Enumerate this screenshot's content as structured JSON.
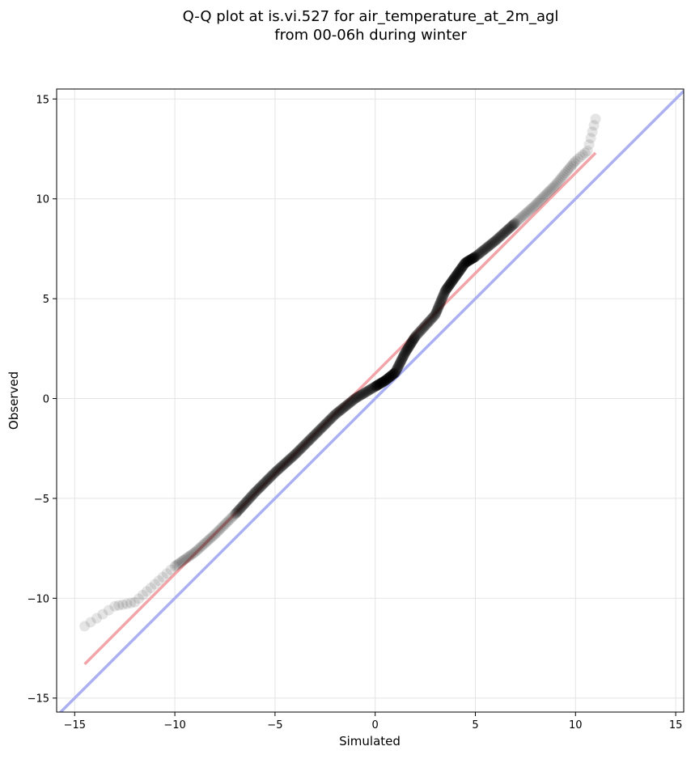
{
  "chart_data": {
    "type": "scatter",
    "title_line1": "Q-Q plot at is.vi.527 for air_temperature_at_2m_agl",
    "title_line2": "from 00-06h during winter",
    "xlabel": "Simulated",
    "ylabel": "Observed",
    "xlim": [
      -15.9,
      15.4
    ],
    "ylim": [
      -15.7,
      15.5
    ],
    "xticks": [
      -15,
      -10,
      -5,
      0,
      5,
      10,
      15
    ],
    "yticks": [
      -15,
      -10,
      -5,
      0,
      5,
      10,
      15
    ],
    "xtick_labels": [
      "−15",
      "−10",
      "−5",
      "0",
      "5",
      "10",
      "15"
    ],
    "ytick_labels": [
      "−15",
      "−10",
      "−5",
      "0",
      "5",
      "10",
      "15"
    ],
    "grid": true,
    "identity_line": {
      "color": "#aab0f2",
      "from": [
        -15.9,
        -15.9
      ],
      "to": [
        15.4,
        15.4
      ]
    },
    "fit_line": {
      "color": "#f2a5a8",
      "from": [
        -14.5,
        -13.3
      ],
      "to": [
        11.0,
        12.3
      ]
    },
    "marker_color": "#000000",
    "marker_opacity": 0.1,
    "quantile_anchors": {
      "x": [
        -14.5,
        -13.0,
        -12.0,
        -11.0,
        -10.0,
        -9.0,
        -8.0,
        -7.0,
        -6.0,
        -5.0,
        -4.0,
        -3.0,
        -2.0,
        -1.0,
        0.0,
        0.5,
        1.0,
        1.5,
        2.0,
        3.0,
        3.5,
        4.0,
        4.5,
        5.0,
        6.0,
        7.0,
        8.0,
        9.0,
        10.0,
        10.6,
        11.0
      ],
      "y": [
        -11.4,
        -10.4,
        -10.2,
        -9.3,
        -8.4,
        -7.7,
        -6.8,
        -5.8,
        -4.7,
        -3.7,
        -2.8,
        -1.8,
        -0.8,
        0.0,
        0.6,
        0.9,
        1.3,
        2.3,
        3.1,
        4.2,
        5.4,
        6.1,
        6.8,
        7.1,
        7.9,
        8.8,
        9.7,
        10.7,
        11.9,
        12.4,
        14.0
      ]
    }
  }
}
